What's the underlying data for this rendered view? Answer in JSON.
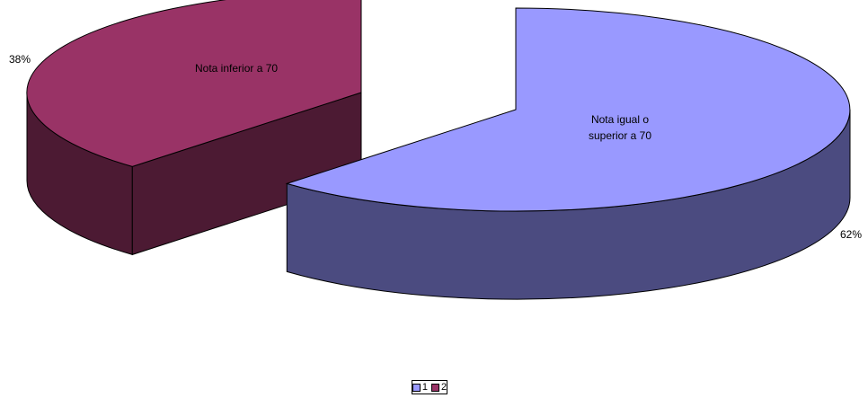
{
  "chart_data": {
    "type": "pie",
    "style": "3d-exploded",
    "categories": [
      "1",
      "2"
    ],
    "values": [
      62,
      38
    ],
    "value_labels": [
      "62%",
      "38%"
    ],
    "slice_labels": [
      "Nota igual o superior a 70",
      "Nota inferior a 70"
    ],
    "colors": {
      "slice1_top": "#9999ff",
      "slice1_side": "#4b4b80",
      "slice2_top": "#993366",
      "slice2_side": "#4c1a33"
    },
    "legend": {
      "placement": "bottom",
      "entries": [
        {
          "label": "1",
          "color": "#9999ff"
        },
        {
          "label": "2",
          "color": "#993366"
        }
      ]
    }
  }
}
